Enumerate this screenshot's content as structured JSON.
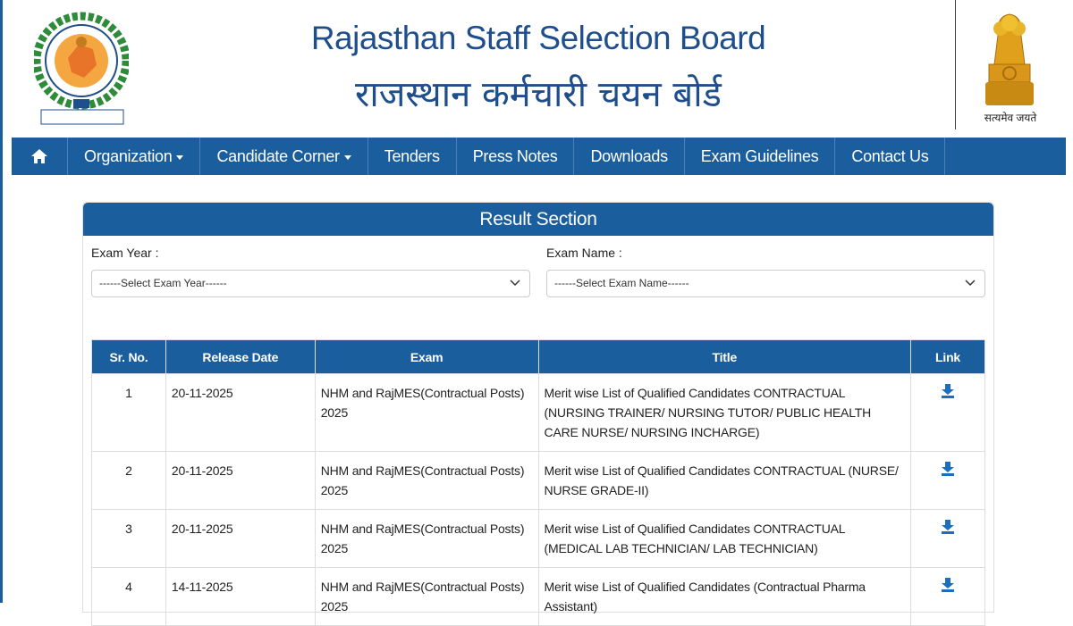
{
  "header": {
    "title_en": "Rajasthan Staff Selection Board",
    "title_hi": "राजस्थान कर्मचारी चयन बोर्ड",
    "emblem_caption": "सत्यमेव जयते"
  },
  "nav": {
    "items": [
      "Organization",
      "Candidate Corner",
      "Tenders",
      "Press Notes",
      "Downloads",
      "Exam Guidelines",
      "Contact Us"
    ]
  },
  "section": {
    "title": "Result Section",
    "filters": [
      {
        "label": "Exam Year :",
        "placeholder": "------Select Exam Year------"
      },
      {
        "label": "Exam Name :",
        "placeholder": "------Select Exam Name------"
      }
    ]
  },
  "table": {
    "columns": [
      "Sr. No.",
      "Release Date",
      "Exam",
      "Title",
      "Link"
    ],
    "rows": [
      [
        1,
        "20-11-2025",
        "NHM and RajMES(Contractual Posts) 2025",
        "Merit wise List of Qualified Candidates CONTRACTUAL (NURSING TRAINER/ NURSING TUTOR/ PUBLIC HEALTH CARE NURSE/ NURSING INCHARGE)"
      ],
      [
        2,
        "20-11-2025",
        "NHM and RajMES(Contractual Posts) 2025",
        "Merit wise List of Qualified Candidates CONTRACTUAL (NURSE/ NURSE GRADE-II)"
      ],
      [
        3,
        "20-11-2025",
        "NHM and RajMES(Contractual Posts) 2025",
        "Merit wise List of Qualified Candidates CONTRACTUAL (MEDICAL LAB TECHNICIAN/ LAB TECHNICIAN)"
      ],
      [
        4,
        "14-11-2025",
        "NHM and RajMES(Contractual Posts) 2025",
        "Merit wise List of Qualified Candidates (Contractual Pharma Assistant)"
      ]
    ]
  }
}
